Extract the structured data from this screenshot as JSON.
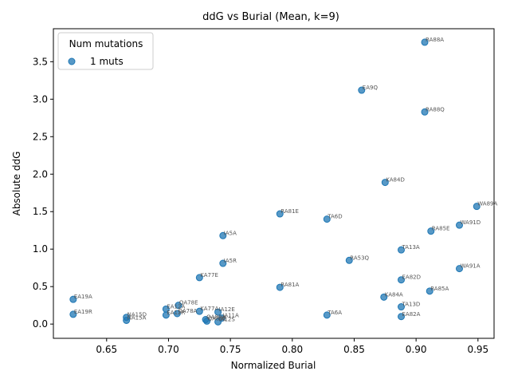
{
  "chart_data": {
    "type": "scatter",
    "title": "ddG vs Burial (Mean, k=9)",
    "xlabel": "Normalized Burial",
    "ylabel": "Absolute ddG",
    "xlim": [
      0.607,
      0.963
    ],
    "ylim": [
      -0.19,
      3.94
    ],
    "xticks": [
      0.65,
      0.7,
      0.75,
      0.8,
      0.85,
      0.9,
      0.95
    ],
    "xtick_labels": [
      "0.65",
      "0.70",
      "0.75",
      "0.80",
      "0.85",
      "0.90",
      "0.95"
    ],
    "yticks": [
      0.0,
      0.5,
      1.0,
      1.5,
      2.0,
      2.5,
      3.0,
      3.5
    ],
    "ytick_labels": [
      "0.0",
      "0.5",
      "1.0",
      "1.5",
      "2.0",
      "2.5",
      "3.0",
      "3.5"
    ],
    "grid": false,
    "legend": {
      "title": "Num mutations",
      "position": "top-left",
      "entries": [
        "1 muts"
      ]
    },
    "color": "#1f77b4",
    "series": [
      {
        "name": "1 muts",
        "points": [
          {
            "x": 0.907,
            "y": 3.76,
            "label": "RA88A"
          },
          {
            "x": 0.856,
            "y": 3.12,
            "label": "EA9Q"
          },
          {
            "x": 0.907,
            "y": 2.83,
            "label": "RA88Q"
          },
          {
            "x": 0.875,
            "y": 1.89,
            "label": "KA84D"
          },
          {
            "x": 0.949,
            "y": 1.57,
            "label": "WA89A"
          },
          {
            "x": 0.79,
            "y": 1.47,
            "label": "RA81E"
          },
          {
            "x": 0.828,
            "y": 1.4,
            "label": "TA6D"
          },
          {
            "x": 0.935,
            "y": 1.32,
            "label": "WA91D"
          },
          {
            "x": 0.912,
            "y": 1.24,
            "label": "RA85E"
          },
          {
            "x": 0.744,
            "y": 1.18,
            "label": "IA5A"
          },
          {
            "x": 0.888,
            "y": 0.99,
            "label": "TA13A"
          },
          {
            "x": 0.846,
            "y": 0.85,
            "label": "RA53Q"
          },
          {
            "x": 0.744,
            "y": 0.81,
            "label": "IA5R"
          },
          {
            "x": 0.935,
            "y": 0.74,
            "label": "WA91A"
          },
          {
            "x": 0.725,
            "y": 0.62,
            "label": "KA77E"
          },
          {
            "x": 0.888,
            "y": 0.59,
            "label": "EA82D"
          },
          {
            "x": 0.79,
            "y": 0.49,
            "label": "RA81A"
          },
          {
            "x": 0.911,
            "y": 0.44,
            "label": "RA85A"
          },
          {
            "x": 0.874,
            "y": 0.36,
            "label": "KA84A"
          },
          {
            "x": 0.623,
            "y": 0.33,
            "label": "EA19A"
          },
          {
            "x": 0.708,
            "y": 0.25,
            "label": "QA78E"
          },
          {
            "x": 0.888,
            "y": 0.23,
            "label": "TA13D"
          },
          {
            "x": 0.698,
            "y": 0.2,
            "label": "EA12A"
          },
          {
            "x": 0.725,
            "y": 0.17,
            "label": "KA77A"
          },
          {
            "x": 0.74,
            "y": 0.16,
            "label": "IA12E"
          },
          {
            "x": 0.707,
            "y": 0.14,
            "label": "QA78A"
          },
          {
            "x": 0.623,
            "y": 0.13,
            "label": "EA19R"
          },
          {
            "x": 0.698,
            "y": 0.12,
            "label": "EA12R"
          },
          {
            "x": 0.828,
            "y": 0.12,
            "label": "TA6A"
          },
          {
            "x": 0.888,
            "y": 0.1,
            "label": "EA82A"
          },
          {
            "x": 0.666,
            "y": 0.09,
            "label": "NA15D"
          },
          {
            "x": 0.743,
            "y": 0.08,
            "label": "IA11A"
          },
          {
            "x": 0.73,
            "y": 0.06,
            "label": "QA89A"
          },
          {
            "x": 0.666,
            "y": 0.05,
            "label": "NA15A"
          },
          {
            "x": 0.731,
            "y": 0.04,
            "label": "QA89E"
          },
          {
            "x": 0.74,
            "y": 0.03,
            "label": "IA12S"
          }
        ]
      }
    ]
  }
}
